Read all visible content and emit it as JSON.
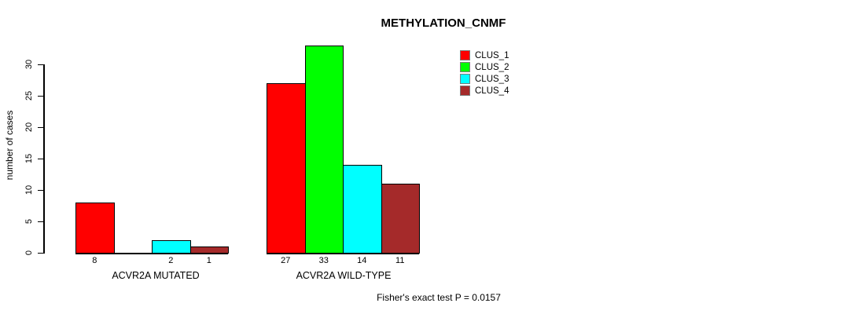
{
  "chart_data": {
    "type": "bar",
    "title": "METHYLATION_CNMF",
    "ylabel": "number of cases",
    "xlabel": "",
    "groups": [
      "ACVR2A MUTATED",
      "ACVR2A WILD-TYPE"
    ],
    "series": [
      {
        "name": "CLUS_1",
        "color": "#ff0000",
        "values": [
          8,
          27
        ]
      },
      {
        "name": "CLUS_2",
        "color": "#00ff00",
        "values": [
          0,
          33
        ]
      },
      {
        "name": "CLUS_3",
        "color": "#00ffff",
        "values": [
          2,
          14
        ]
      },
      {
        "name": "CLUS_4",
        "color": "#a52a2a",
        "values": [
          1,
          11
        ]
      }
    ],
    "value_labels": [
      [
        "8",
        "",
        "2",
        "1"
      ],
      [
        "27",
        "33",
        "14",
        "11"
      ]
    ],
    "y_ticks": [
      0,
      5,
      10,
      15,
      20,
      25,
      30
    ],
    "ylim": [
      0,
      33
    ],
    "grid": false,
    "legend_position": "top-right",
    "annotation": "Fisher's exact test P = 0.0157",
    "axis_color": "#000000",
    "bar_border_color": "#000000"
  }
}
